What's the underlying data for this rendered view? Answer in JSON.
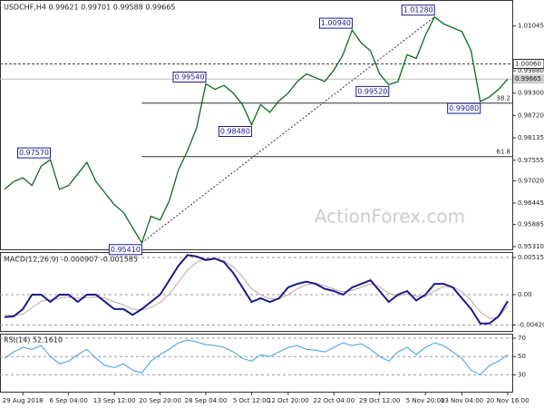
{
  "chart_data": {
    "type": "line",
    "title": "USDCHF,H4 0.99621 0.99701 0.99588 0.99665",
    "watermark": "ActionForex.com",
    "categories": [
      null,
      null,
      "29 Aug 2018",
      null,
      null,
      null,
      null,
      "6 Sep 04:00",
      null,
      null,
      null,
      null,
      "13 Sep 12:00",
      null,
      null,
      null,
      null,
      "20 Sep 20:00",
      null,
      null,
      null,
      null,
      "28 Sep 04:00",
      null,
      null,
      null,
      null,
      "5 Oct 12:00",
      null,
      null,
      null,
      "12 Oct 20:00",
      null,
      null,
      null,
      null,
      "22 Oct 04:00",
      null,
      null,
      null,
      null,
      "29 Oct 12:00",
      null,
      null,
      null,
      null,
      "5 Nov 20:00",
      null,
      null,
      null,
      "13 Nov 04:00",
      null,
      null,
      null,
      null,
      "20 Nov 16:00"
    ],
    "series": [
      {
        "name": "USDCHF",
        "color": "#0a6b1f",
        "values": [
          0.968,
          0.97,
          0.971,
          0.969,
          0.974,
          0.9757,
          0.968,
          0.969,
          0.972,
          0.975,
          0.97,
          0.967,
          0.964,
          0.962,
          0.958,
          0.9541,
          0.961,
          0.96,
          0.965,
          0.973,
          0.978,
          0.984,
          0.9954,
          0.994,
          0.995,
          0.993,
          0.99,
          0.9848,
          0.99,
          0.988,
          0.991,
          0.993,
          0.996,
          0.998,
          0.997,
          0.996,
          0.999,
          1.003,
          1.0094,
          1.006,
          1.004,
          0.998,
          0.9952,
          0.996,
          1.003,
          1.002,
          1.008,
          1.0128,
          1.011,
          1.01,
          1.009,
          1.004,
          0.9908,
          0.992,
          0.994,
          0.99665
        ]
      }
    ],
    "ylim": [
      0.9524,
      1.0172
    ],
    "yticks": [
      1.01045,
      {
        "value": 0.9988,
        "label": "0.99880"
      },
      {
        "value": 0.993,
        "label": "0.99300"
      },
      {
        "value": 0.9872,
        "label": "0.98720"
      },
      0.98135,
      0.97555,
      {
        "value": 0.9702,
        "label": "0.97020"
      },
      0.96445,
      0.95885,
      {
        "value": 0.9531,
        "label": "0.95310"
      }
    ],
    "levels": [
      {
        "value": 1.0006,
        "label": "1.00060"
      }
    ],
    "last": {
      "value": 0.99665,
      "label": "0.99665"
    },
    "fibonacci": [
      {
        "value": 0.9904,
        "label": "38.2"
      },
      {
        "value": 0.9765,
        "label": "61.8"
      }
    ],
    "fib_start": 15,
    "annotations": [
      {
        "index": 15,
        "value": 0.9541,
        "label": "0.95410"
      },
      {
        "index": 5,
        "value": 0.9757,
        "label": "0.97570"
      },
      {
        "index": 22,
        "value": 0.9954,
        "label": "0.99540"
      },
      {
        "index": 27,
        "value": 0.9848,
        "label": "0.98480"
      },
      {
        "index": 38,
        "value": 1.0094,
        "label": "1.00940"
      },
      {
        "index": 42,
        "value": 0.9952,
        "label": "0.99520"
      },
      {
        "index": 47,
        "value": 1.0128,
        "label": "1.01280"
      },
      {
        "index": 52,
        "value": 0.9908,
        "label": "0.99080"
      }
    ],
    "macd": {
      "label": "MACD(12,26,9) -0.000907 -0.001585",
      "ylim": [
        -0.00503,
        0.00591
      ],
      "yticks": [
        0.005154,
        {
          "value": 0,
          "label": "0.00"
        },
        -0.004209
      ],
      "series": [
        {
          "name": "MACD",
          "color": "#1a1a8c",
          "values": [
            -0.0031,
            -0.003,
            -0.002,
            0.0,
            0.0,
            -0.001,
            0.0,
            0.0,
            -0.001,
            0.0,
            0.0,
            -0.001,
            -0.002,
            -0.002,
            -0.0028,
            -0.002,
            -0.001,
            0.0,
            0.002,
            0.004,
            0.0055,
            0.0053,
            0.0048,
            0.005,
            0.0045,
            0.003,
            0.001,
            -0.001,
            -0.0005,
            -0.001,
            -0.0005,
            0.001,
            0.0015,
            0.0018,
            0.0015,
            0.0008,
            0.0005,
            0.0,
            0.001,
            0.0015,
            0.002,
            0.0005,
            -0.001,
            0.0,
            0.0005,
            -0.0008,
            0.0,
            0.0015,
            0.0015,
            0.001,
            -0.0005,
            -0.002,
            -0.004,
            -0.004,
            -0.003,
            -0.000907
          ]
        },
        {
          "name": "Signal",
          "color": "#c9a3a3",
          "values": [
            -0.0028,
            -0.0029,
            -0.0027,
            -0.0018,
            -0.0009,
            -0.0007,
            -0.0005,
            -0.0003,
            -0.0005,
            -0.0004,
            -0.0003,
            -0.0005,
            -0.001,
            -0.0014,
            -0.002,
            -0.0021,
            -0.0018,
            -0.0011,
            0.0001,
            0.0017,
            0.0034,
            0.0045,
            0.005,
            0.005,
            0.0047,
            0.0039,
            0.0025,
            0.0008,
            0.0,
            -0.0006,
            -0.0006,
            0.0,
            0.0008,
            0.0014,
            0.0016,
            0.0012,
            0.0008,
            0.0004,
            0.0006,
            0.001,
            0.0015,
            0.0011,
            0.0002,
            -0.0002,
            0.0001,
            -0.0002,
            -0.0003,
            0.0005,
            0.0011,
            0.0011,
            0.0004,
            -0.0008,
            -0.0024,
            -0.0033,
            -0.0031,
            -0.001585
          ]
        }
      ]
    },
    "rsi": {
      "label": "RSI(14) 52.1610",
      "color": "#3a9fe0",
      "ylim": [
        11.6,
        75
      ],
      "yticks": [
        70,
        50,
        30
      ],
      "values": [
        48,
        55,
        60,
        58,
        62,
        50,
        42,
        45,
        52,
        58,
        48,
        40,
        38,
        42,
        35,
        32,
        45,
        52,
        58,
        65,
        68,
        66,
        63,
        62,
        60,
        55,
        48,
        45,
        52,
        50,
        55,
        60,
        62,
        58,
        57,
        55,
        60,
        65,
        62,
        64,
        58,
        50,
        45,
        55,
        60,
        52,
        60,
        65,
        62,
        55,
        48,
        35,
        30,
        40,
        45,
        52.161
      ]
    }
  }
}
